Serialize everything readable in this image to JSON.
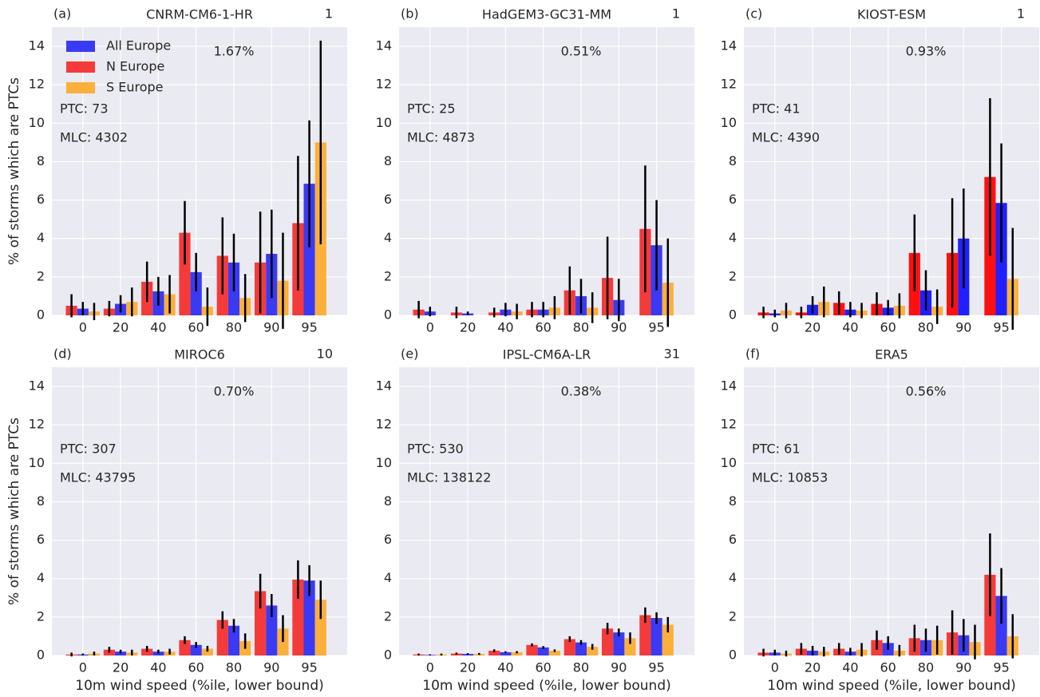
{
  "chart_data": [
    {
      "type": "bar",
      "panel": "(a)",
      "title": "CNRM-CM6-1-HR",
      "count": "1",
      "percent": "1.67%",
      "annotations": [
        "PTC: 73",
        "MLC: 4302"
      ],
      "ylabel": "% of storms which are PTCs",
      "legend": "upper left",
      "categories": [
        "0",
        "20",
        "40",
        "60",
        "80",
        "90",
        "95"
      ],
      "series": [
        {
          "name": "All Europe",
          "color": "#3a3af5",
          "values": [
            0.35,
            0.6,
            1.25,
            2.25,
            2.75,
            3.2,
            6.85
          ],
          "errors": [
            0.35,
            0.45,
            0.75,
            1.0,
            1.5,
            2.3,
            3.3
          ]
        },
        {
          "name": "N Europe",
          "color": "#f53a3a",
          "values": [
            0.5,
            0.35,
            1.75,
            4.3,
            3.1,
            2.75,
            4.8
          ],
          "errors": [
            0.6,
            0.4,
            1.05,
            1.65,
            2.0,
            2.65,
            3.5
          ]
        },
        {
          "name": "S Europe",
          "color": "#fbb03b",
          "values": [
            0.2,
            0.7,
            1.1,
            0.45,
            0.9,
            1.8,
            9.0
          ],
          "errors": [
            0.45,
            0.75,
            1.0,
            1.0,
            1.25,
            2.5,
            5.3
          ]
        }
      ],
      "ylim": [
        0,
        15
      ],
      "yticks": [
        0,
        2,
        4,
        6,
        8,
        10,
        12,
        14
      ],
      "grid": true
    },
    {
      "type": "bar",
      "panel": "(b)",
      "title": "HadGEM3-GC31-MM",
      "count": "1",
      "percent": "0.51%",
      "annotations": [
        "PTC: 25",
        "MLC: 4873"
      ],
      "categories": [
        "0",
        "20",
        "40",
        "60",
        "80",
        "90",
        "95"
      ],
      "series": [
        {
          "color": "#3a3af5",
          "values": [
            0.2,
            0.1,
            0.3,
            0.3,
            1.0,
            0.8,
            3.65
          ],
          "errors": [
            0.25,
            0.1,
            0.35,
            0.4,
            0.9,
            1.1,
            2.35
          ]
        },
        {
          "color": "#f53a3a",
          "values": [
            0.3,
            0.15,
            0.15,
            0.3,
            1.3,
            1.95,
            4.5
          ],
          "errors": [
            0.45,
            0.3,
            0.25,
            0.4,
            1.25,
            2.15,
            3.3
          ]
        },
        {
          "color": "#fbb03b",
          "values": [
            0,
            0,
            0.2,
            0.4,
            0.4,
            0,
            1.7
          ],
          "errors": [
            0,
            0,
            0.4,
            0.6,
            0.8,
            0,
            2.3
          ]
        }
      ],
      "ylim": [
        0,
        15
      ],
      "yticks": [
        0,
        2,
        4,
        6,
        8,
        10,
        12,
        14
      ],
      "grid": true
    },
    {
      "type": "bar",
      "panel": "(c)",
      "title": "KIOST-ESM",
      "count": "1",
      "percent": "0.93%",
      "annotations": [
        "PTC: 41",
        "MLC: 4390"
      ],
      "categories": [
        "0",
        "20",
        "40",
        "60",
        "80",
        "90",
        "95"
      ],
      "series": [
        {
          "color": "#2020ff",
          "values": [
            0.1,
            0.55,
            0.3,
            0.4,
            1.3,
            4.0,
            5.85
          ],
          "errors": [
            0.2,
            0.45,
            0.4,
            0.4,
            1.05,
            2.6,
            3.1
          ]
        },
        {
          "color": "#ff1010",
          "values": [
            0.15,
            0.15,
            0.65,
            0.6,
            3.25,
            3.25,
            7.2
          ],
          "errors": [
            0.3,
            0.3,
            0.6,
            0.6,
            2.0,
            2.85,
            4.1
          ]
        },
        {
          "color": "#fbb03b",
          "values": [
            0.25,
            0.7,
            0.25,
            0.5,
            0.45,
            0,
            1.9
          ],
          "errors": [
            0.4,
            0.8,
            0.4,
            0.65,
            0.9,
            0,
            2.65
          ]
        }
      ],
      "ylim": [
        0,
        15
      ],
      "yticks": [
        0,
        2,
        4,
        6,
        8,
        10,
        12,
        14
      ],
      "grid": true
    },
    {
      "type": "bar",
      "panel": "(d)",
      "title": "MIROC6",
      "count": "10",
      "percent": "0.70%",
      "annotations": [
        "PTC: 307",
        "MLC: 43795"
      ],
      "ylabel": "% of storms which are PTCs",
      "xlabel": "10m wind speed (%ile, lower bound)",
      "categories": [
        "0",
        "20",
        "40",
        "60",
        "80",
        "90",
        "95"
      ],
      "series": [
        {
          "color": "#3a3af5",
          "values": [
            0.05,
            0.2,
            0.2,
            0.55,
            1.55,
            2.6,
            3.9
          ],
          "errors": [
            0.05,
            0.1,
            0.1,
            0.15,
            0.35,
            0.6,
            0.8
          ]
        },
        {
          "color": "#f53a3a",
          "values": [
            0.05,
            0.3,
            0.35,
            0.8,
            1.85,
            3.35,
            3.95
          ],
          "errors": [
            0.1,
            0.15,
            0.15,
            0.2,
            0.45,
            0.9,
            1.0
          ]
        },
        {
          "color": "#fbb03b",
          "values": [
            0.1,
            0.15,
            0.2,
            0.35,
            0.75,
            1.4,
            2.9
          ],
          "errors": [
            0.1,
            0.15,
            0.15,
            0.15,
            0.4,
            0.7,
            1.0
          ]
        }
      ],
      "ylim": [
        0,
        15
      ],
      "yticks": [
        0,
        2,
        4,
        6,
        8,
        10,
        12,
        14
      ],
      "grid": true
    },
    {
      "type": "bar",
      "panel": "(e)",
      "title": "IPSL-CM6A-LR",
      "count": "31",
      "percent": "0.38%",
      "annotations": [
        "PTC: 530",
        "MLC: 138122"
      ],
      "xlabel": "10m wind speed (%ile, lower bound)",
      "categories": [
        "0",
        "20",
        "40",
        "60",
        "80",
        "90",
        "95"
      ],
      "series": [
        {
          "color": "#3a3af5",
          "values": [
            0.03,
            0.08,
            0.17,
            0.42,
            0.68,
            1.2,
            1.95
          ],
          "errors": [
            0.03,
            0.04,
            0.05,
            0.07,
            0.12,
            0.2,
            0.3
          ]
        },
        {
          "color": "#f53a3a",
          "values": [
            0.05,
            0.1,
            0.25,
            0.55,
            0.85,
            1.4,
            2.1
          ],
          "errors": [
            0.05,
            0.05,
            0.07,
            0.08,
            0.15,
            0.3,
            0.4
          ]
        },
        {
          "color": "#fbb03b",
          "values": [
            0.05,
            0.08,
            0.17,
            0.25,
            0.45,
            0.9,
            1.6
          ],
          "errors": [
            0.05,
            0.05,
            0.06,
            0.07,
            0.15,
            0.3,
            0.4
          ]
        }
      ],
      "ylim": [
        0,
        15
      ],
      "yticks": [
        0,
        2,
        4,
        6,
        8,
        10,
        12,
        14
      ],
      "grid": true
    },
    {
      "type": "bar",
      "panel": "(f)",
      "title": "ERA5",
      "percent": "0.56%",
      "annotations": [
        "PTC: 61",
        "MLC: 10853"
      ],
      "xlabel": "10m wind speed (%ile, lower bound)",
      "categories": [
        "0",
        "20",
        "40",
        "60",
        "80",
        "90",
        "95"
      ],
      "series": [
        {
          "color": "#3a3af5",
          "values": [
            0.15,
            0.25,
            0.2,
            0.65,
            0.8,
            1.05,
            3.1
          ],
          "errors": [
            0.15,
            0.25,
            0.2,
            0.35,
            0.6,
            0.85,
            1.45
          ]
        },
        {
          "color": "#f53a3a",
          "values": [
            0.15,
            0.35,
            0.35,
            0.8,
            0.9,
            1.2,
            4.2
          ],
          "errors": [
            0.2,
            0.3,
            0.3,
            0.5,
            0.7,
            1.15,
            2.15
          ]
        },
        {
          "color": "#fbb03b",
          "values": [
            0.1,
            0.2,
            0.3,
            0.25,
            0.8,
            0.7,
            1.0
          ],
          "errors": [
            0.15,
            0.25,
            0.35,
            0.3,
            0.75,
            0.9,
            1.15
          ]
        }
      ],
      "ylim": [
        0,
        15
      ],
      "yticks": [
        0,
        2,
        4,
        6,
        8,
        10,
        12,
        14
      ],
      "grid": true
    }
  ]
}
